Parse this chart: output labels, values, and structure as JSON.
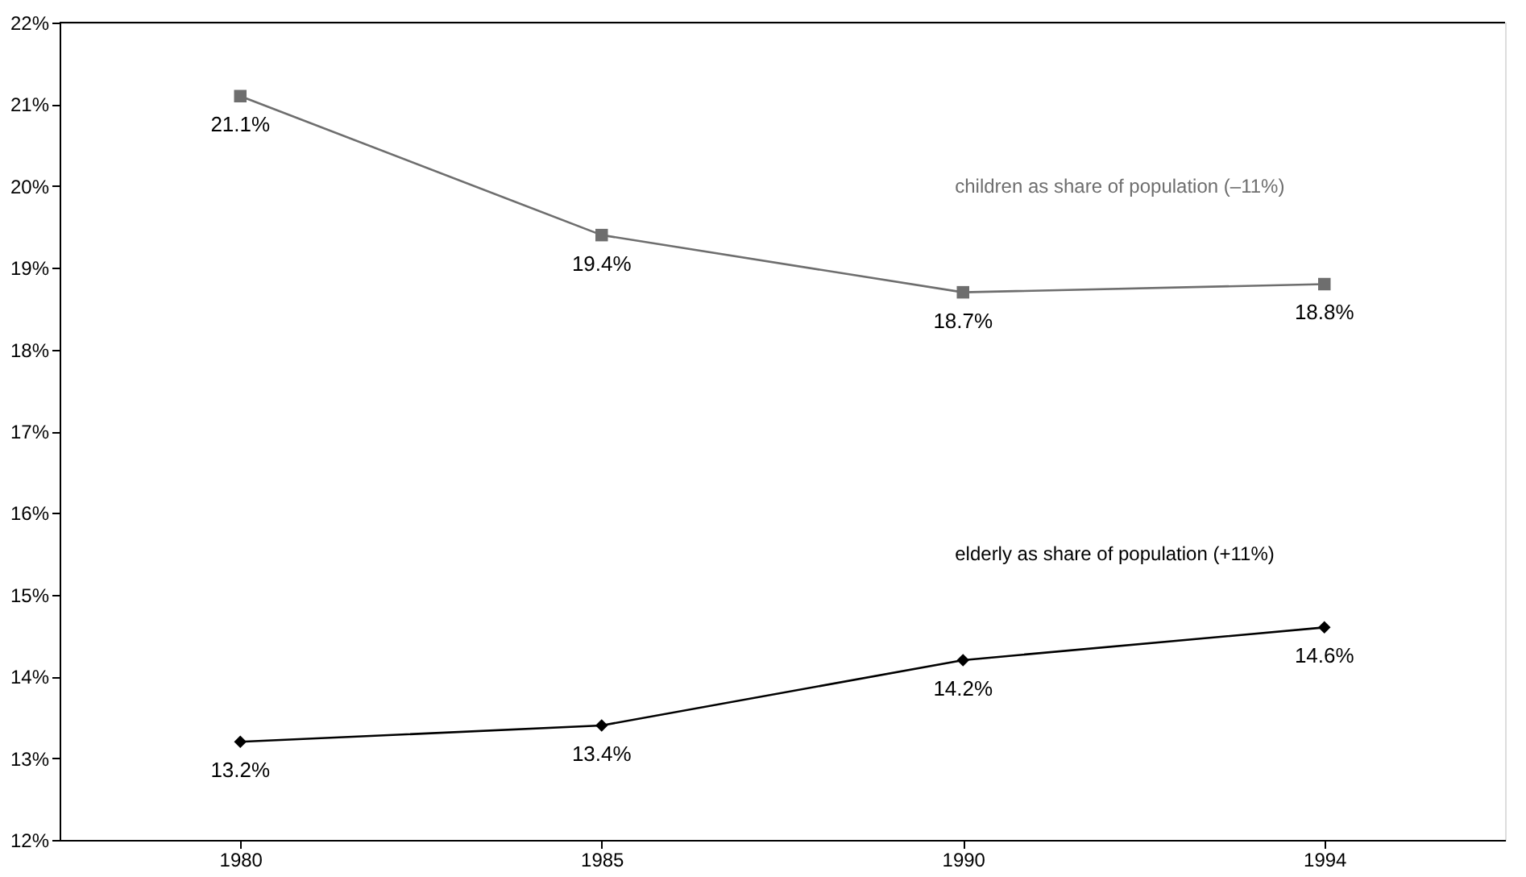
{
  "chart_data": {
    "type": "line",
    "categories": [
      "1980",
      "1985",
      "1990",
      "1994"
    ],
    "series": [
      {
        "name": "children as share of population (–11%)",
        "color": "#6e6e6e",
        "marker": "square",
        "values": [
          21.1,
          19.4,
          18.7,
          18.8
        ]
      },
      {
        "name": "elderly as share of population (+11%)",
        "color": "#000000",
        "marker": "diamond",
        "values": [
          13.2,
          13.4,
          14.2,
          14.6
        ]
      }
    ],
    "ylim": [
      12,
      22
    ],
    "yticks": [
      {
        "value": 12,
        "label": "12%"
      },
      {
        "value": 13,
        "label": "13%"
      },
      {
        "value": 14,
        "label": "14%"
      },
      {
        "value": 15,
        "label": "15%"
      },
      {
        "value": 16,
        "label": "16%"
      },
      {
        "value": 17,
        "label": "17%"
      },
      {
        "value": 18,
        "label": "18%"
      },
      {
        "value": 19,
        "label": "19%"
      },
      {
        "value": 20,
        "label": "20%"
      },
      {
        "value": 21,
        "label": "21%"
      },
      {
        "value": 22,
        "label": "22%"
      }
    ],
    "value_labels": [
      [
        "21.1%",
        "19.4%",
        "18.7%",
        "18.8%"
      ],
      [
        "13.2%",
        "13.4%",
        "14.2%",
        "14.6%"
      ]
    ],
    "grid": false,
    "line_style": "solid"
  }
}
